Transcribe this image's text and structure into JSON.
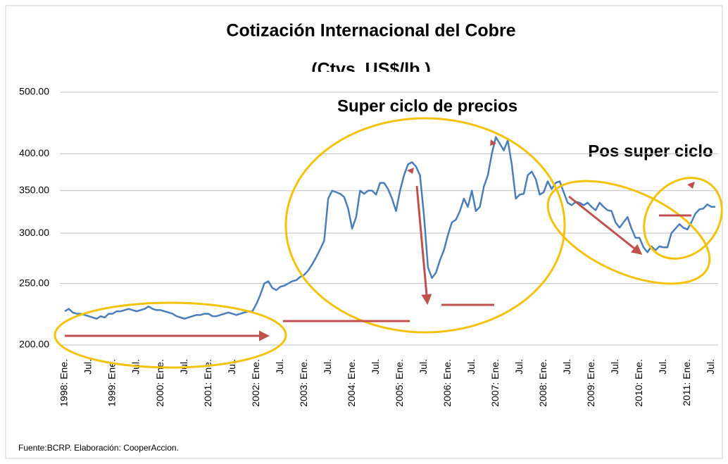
{
  "chart_data": {
    "type": "line",
    "title": "Cotización Internacional del Cobre",
    "subtitle": "(Ctvs. US$/lb.)",
    "annotations": [
      "Super ciclo de precios",
      "Pos super ciclo"
    ],
    "source": "Fuente:BCRP. Elaboración: CooperAccion.",
    "log_scale": true,
    "grid": true,
    "ylim": [
      200,
      500
    ],
    "yticks": [
      {
        "value": 200,
        "label": "200.00"
      },
      {
        "value": 250,
        "label": "250.00"
      },
      {
        "value": 300,
        "label": "300.00"
      },
      {
        "value": 350,
        "label": "350.00"
      },
      {
        "value": 400,
        "label": "400.00"
      },
      {
        "value": 500,
        "label": "500.00"
      }
    ],
    "categories": [
      "1998: Ene.",
      null,
      null,
      null,
      null,
      null,
      "Jul.",
      null,
      null,
      null,
      null,
      null,
      "1999: Ene.",
      null,
      null,
      null,
      null,
      null,
      "Jul.",
      null,
      null,
      null,
      null,
      null,
      "2000: Ene.",
      null,
      null,
      null,
      null,
      null,
      "Jul.",
      null,
      null,
      null,
      null,
      null,
      "2001: Ene.",
      null,
      null,
      null,
      null,
      null,
      "Jul.",
      null,
      null,
      null,
      null,
      null,
      "2002: Ene.",
      null,
      null,
      null,
      null,
      null,
      "Jul.",
      null,
      null,
      null,
      null,
      null,
      "2003: Ene.",
      null,
      null,
      null,
      null,
      null,
      "Jul.",
      null,
      null,
      null,
      null,
      null,
      "2004: Ene.",
      null,
      null,
      null,
      null,
      null,
      "Jul.",
      null,
      null,
      null,
      null,
      null,
      "2005: Ene.",
      null,
      null,
      null,
      null,
      null,
      "Jul.",
      null,
      null,
      null,
      null,
      null,
      "2006: Ene.",
      null,
      null,
      null,
      null,
      null,
      "Jul.",
      null,
      null,
      null,
      null,
      null,
      "2007: Ene.",
      null,
      null,
      null,
      null,
      null,
      "Jul.",
      null,
      null,
      null,
      null,
      null,
      "2008: Ene.",
      null,
      null,
      null,
      null,
      null,
      "Jul.",
      null,
      null,
      null,
      null,
      null,
      "2009: Ene.",
      null,
      null,
      null,
      null,
      null,
      "Jul.",
      null,
      null,
      null,
      null,
      null,
      "2010: Ene.",
      null,
      null,
      null,
      null,
      null,
      "Jul.",
      null,
      null,
      null,
      null,
      null,
      "2011: Ene.",
      null,
      null,
      null,
      null,
      null,
      "Jul.",
      null
    ],
    "series": [
      {
        "name": "Cobre",
        "color": "#4a7ebb",
        "values": [
          226,
          228,
          225,
          224,
          224,
          223,
          222,
          221,
          220,
          222,
          221,
          224,
          224,
          226,
          226,
          227,
          228,
          227,
          226,
          227,
          228,
          230,
          228,
          227,
          227,
          226,
          225,
          224,
          222,
          221,
          220,
          221,
          222,
          223,
          223,
          224,
          224,
          222,
          222,
          223,
          224,
          225,
          224,
          223,
          224,
          225,
          226,
          226,
          232,
          240,
          250,
          252,
          246,
          244,
          247,
          248,
          250,
          252,
          253,
          256,
          258,
          262,
          268,
          275,
          283,
          292,
          340,
          350,
          348,
          346,
          342,
          328,
          305,
          318,
          350,
          346,
          350,
          350,
          345,
          360,
          360,
          352,
          340,
          325,
          350,
          370,
          385,
          388,
          382,
          370,
          320,
          265,
          255,
          260,
          272,
          282,
          298,
          312,
          315,
          325,
          340,
          330,
          350,
          325,
          330,
          355,
          370,
          400,
          425,
          415,
          405,
          420,
          385,
          340,
          345,
          346,
          370,
          375,
          365,
          345,
          348,
          362,
          352,
          360,
          362,
          348,
          335,
          332,
          336,
          335,
          332,
          335,
          330,
          326,
          335,
          330,
          326,
          325,
          312,
          306,
          312,
          318,
          305,
          295,
          295,
          285,
          280,
          286,
          282,
          286,
          285,
          285,
          300,
          305,
          310,
          306,
          304,
          312,
          322,
          327,
          328,
          333,
          330,
          330
        ]
      }
    ]
  }
}
